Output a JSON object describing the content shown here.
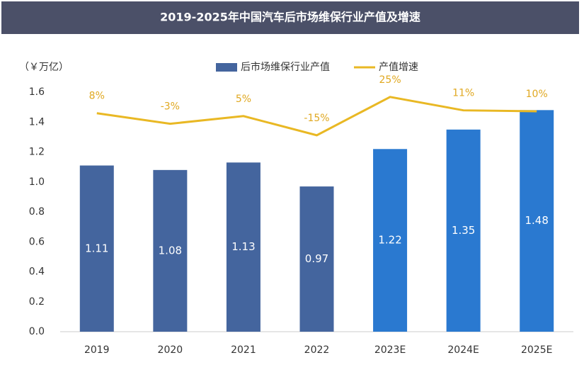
{
  "chart_data": {
    "type": "bar",
    "title": "2019-2025年中国汽车后市场维保行业产值及增速",
    "y_label": "（￥万亿）",
    "categories": [
      "2019",
      "2020",
      "2021",
      "2022",
      "2023E",
      "2024E",
      "2025E"
    ],
    "series": [
      {
        "name": "后市场维保行业产值",
        "type": "bar",
        "color": "#44659e",
        "colors": [
          "#44659e",
          "#44659e",
          "#44659e",
          "#44659e",
          "#2a79d0",
          "#2a79d0",
          "#2a79d0"
        ],
        "values": [
          1.11,
          1.08,
          1.13,
          0.97,
          1.22,
          1.35,
          1.48
        ]
      },
      {
        "name": "产值增速",
        "type": "line",
        "axis": "y2",
        "color": "#e9b824",
        "values": [
          8,
          -3,
          5,
          -15,
          25,
          11,
          10
        ],
        "value_labels": [
          "8%",
          "-3%",
          "5%",
          "-15%",
          "25%",
          "11%",
          "10%"
        ]
      }
    ],
    "ylim": [
      0,
      1.6
    ],
    "yticks": [
      {
        "value": 0,
        "label": "0.0"
      },
      0.2,
      0.4,
      0.6,
      0.8,
      {
        "value": 1,
        "label": "1.0"
      },
      1.2,
      1.4,
      1.6
    ],
    "y2lim": [
      -220,
      30
    ],
    "grid": false
  }
}
